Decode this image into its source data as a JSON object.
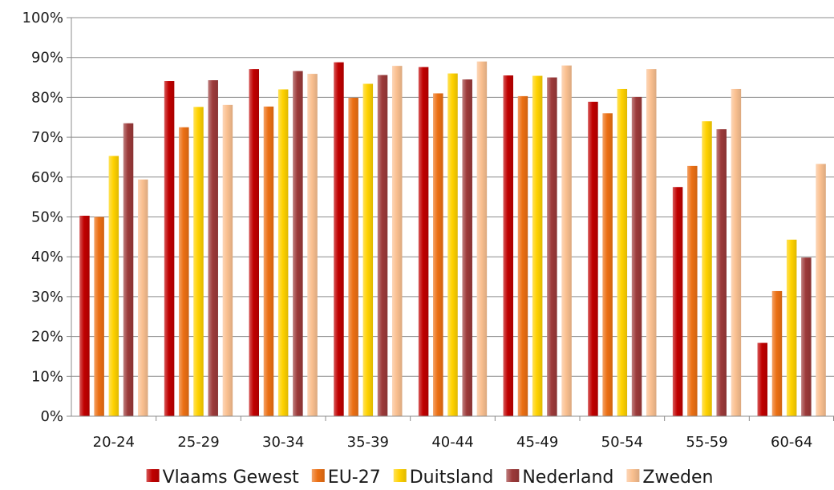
{
  "chart_data": {
    "type": "bar",
    "categories": [
      "20-24",
      "25-29",
      "30-34",
      "35-39",
      "40-44",
      "45-49",
      "50-54",
      "55-59",
      "60-64"
    ],
    "series": [
      {
        "name": "Vlaams Gewest",
        "color": "#c00000",
        "values": [
          50.3,
          84.1,
          87.1,
          88.8,
          87.6,
          85.5,
          78.9,
          57.5,
          18.4
        ]
      },
      {
        "name": "EU-27",
        "color": "#ec7014",
        "values": [
          50.0,
          72.5,
          77.7,
          79.9,
          81.0,
          80.3,
          76.0,
          62.8,
          31.4
        ]
      },
      {
        "name": "Duitsland",
        "color": "#ffd200",
        "values": [
          65.3,
          77.6,
          82.0,
          83.4,
          86.0,
          85.4,
          82.1,
          74.0,
          44.3
        ]
      },
      {
        "name": "Nederland",
        "color": "#9c3a3a",
        "values": [
          73.5,
          84.3,
          86.6,
          85.6,
          84.5,
          85.0,
          80.1,
          72.0,
          39.8
        ]
      },
      {
        "name": "Zweden",
        "color": "#fac090",
        "values": [
          59.4,
          78.1,
          85.9,
          87.9,
          89.0,
          88.0,
          87.1,
          82.1,
          63.3
        ]
      }
    ],
    "y_axis": {
      "min": 0,
      "max": 100,
      "step": 10,
      "tick_labels": [
        "0%",
        "10%",
        "20%",
        "30%",
        "40%",
        "50%",
        "60%",
        "70%",
        "80%",
        "90%",
        "100%"
      ]
    },
    "grid": true,
    "legend_position": "bottom",
    "title": "",
    "xlabel": "",
    "ylabel": ""
  }
}
